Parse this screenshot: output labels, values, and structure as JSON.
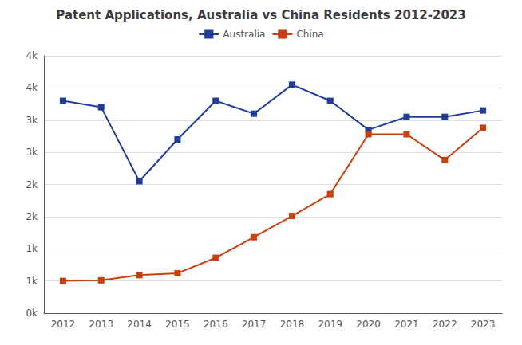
{
  "chart_data": {
    "type": "line",
    "title": "Patent Applications, Australia vs China Residents 2012-2023",
    "categories": [
      "2012",
      "2013",
      "2014",
      "2015",
      "2016",
      "2017",
      "2018",
      "2019",
      "2020",
      "2021",
      "2022",
      "2023"
    ],
    "series": [
      {
        "name": "Australia",
        "color": "#1F3D99",
        "marker": "square",
        "values": [
          3300,
          3200,
          2050,
          2700,
          3300,
          3100,
          3550,
          3300,
          2850,
          3050,
          3050,
          3150
        ]
      },
      {
        "name": "China",
        "color": "#C84010",
        "marker": "square",
        "values": [
          500,
          510,
          590,
          620,
          860,
          1180,
          1510,
          1850,
          2780,
          2780,
          2380,
          2880
        ]
      }
    ],
    "ylim": [
      0,
      4000
    ],
    "yticks": [
      {
        "value": 0,
        "label": "0k"
      },
      {
        "value": 500,
        "label": "1k"
      },
      {
        "value": 1000,
        "label": "1k"
      },
      {
        "value": 1500,
        "label": "2k"
      },
      {
        "value": 2000,
        "label": "2k"
      },
      {
        "value": 2500,
        "label": "3k"
      },
      {
        "value": 3000,
        "label": "3k"
      },
      {
        "value": 3500,
        "label": "4k"
      },
      {
        "value": 4000,
        "label": "4k"
      }
    ],
    "grid": true,
    "legend": "upper center"
  }
}
